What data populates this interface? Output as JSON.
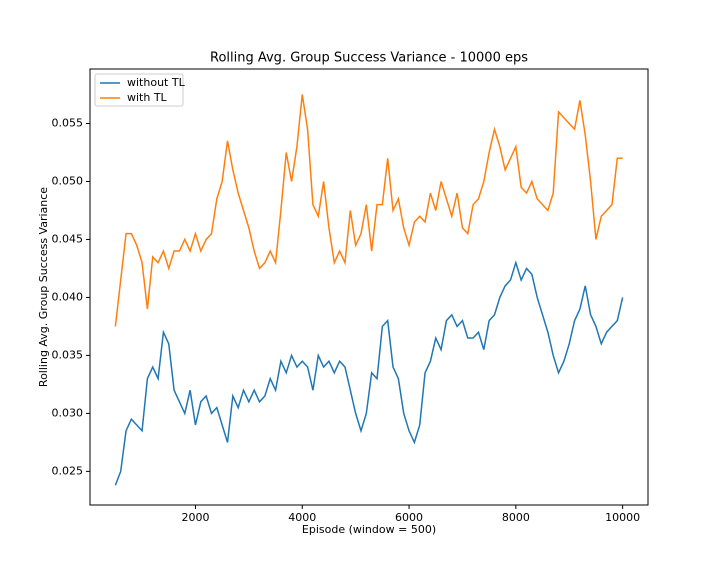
{
  "chart_data": {
    "type": "line",
    "title": "Rolling Avg. Group Success Variance - 10000 eps",
    "x_label": "Episode (window = 500)",
    "y_label": "Rolling Avg. Group Success Variance",
    "xlim": [
      25,
      10475
    ],
    "ylim": [
      0.0221,
      0.0597
    ],
    "xticks": [
      2000,
      4000,
      6000,
      8000,
      10000
    ],
    "yticks": [
      0.025,
      {
        "value": 0.03,
        "label": "0.030"
      },
      0.035,
      {
        "value": 0.04,
        "label": "0.040"
      },
      0.045,
      {
        "value": 0.05,
        "label": "0.050"
      },
      0.055
    ],
    "legend": "upper left",
    "x": [
      500,
      600,
      700,
      800,
      900,
      1000,
      1100,
      1200,
      1300,
      1400,
      1500,
      1600,
      1700,
      1800,
      1900,
      2000,
      2100,
      2200,
      2300,
      2400,
      2500,
      2600,
      2700,
      2800,
      2900,
      3000,
      3100,
      3200,
      3300,
      3400,
      3500,
      3600,
      3700,
      3800,
      3900,
      4000,
      4100,
      4200,
      4300,
      4400,
      4500,
      4600,
      4700,
      4800,
      4900,
      5000,
      5100,
      5200,
      5300,
      5400,
      5500,
      5600,
      5700,
      5800,
      5900,
      6000,
      6100,
      6200,
      6300,
      6400,
      6500,
      6600,
      6700,
      6800,
      6900,
      7000,
      7100,
      7200,
      7300,
      7400,
      7500,
      7600,
      7700,
      7800,
      7900,
      8000,
      8100,
      8200,
      8300,
      8400,
      8500,
      8600,
      8700,
      8800,
      8900,
      9000,
      9100,
      9200,
      9300,
      9400,
      9500,
      9600,
      9700,
      9800,
      9900,
      10000
    ],
    "series": [
      {
        "name": "without TL",
        "color": "#1f77b4",
        "values": [
          0.0238,
          0.025,
          0.0285,
          0.0295,
          0.029,
          0.0285,
          0.033,
          0.034,
          0.033,
          0.037,
          0.036,
          0.032,
          0.031,
          0.03,
          0.032,
          0.029,
          0.031,
          0.0315,
          0.03,
          0.0305,
          0.029,
          0.0275,
          0.0315,
          0.0305,
          0.032,
          0.031,
          0.032,
          0.031,
          0.0315,
          0.033,
          0.032,
          0.0345,
          0.0335,
          0.035,
          0.034,
          0.0345,
          0.034,
          0.032,
          0.035,
          0.034,
          0.0345,
          0.0335,
          0.0345,
          0.034,
          0.032,
          0.03,
          0.0285,
          0.03,
          0.0335,
          0.033,
          0.0375,
          0.038,
          0.034,
          0.033,
          0.03,
          0.0285,
          0.0275,
          0.029,
          0.0335,
          0.0345,
          0.0365,
          0.0355,
          0.038,
          0.0385,
          0.0375,
          0.038,
          0.0365,
          0.0365,
          0.037,
          0.0355,
          0.038,
          0.0385,
          0.04,
          0.041,
          0.0415,
          0.043,
          0.0415,
          0.0425,
          0.042,
          0.04,
          0.0385,
          0.037,
          0.035,
          0.0335,
          0.0345,
          0.036,
          0.038,
          0.039,
          0.041,
          0.0385,
          0.0375,
          0.036,
          0.037,
          0.0375,
          0.038,
          0.04
        ]
      },
      {
        "name": "with TL",
        "color": "#ff7f0e",
        "values": [
          0.0375,
          0.0415,
          0.0455,
          0.0455,
          0.0445,
          0.043,
          0.039,
          0.0435,
          0.043,
          0.044,
          0.0425,
          0.044,
          0.044,
          0.045,
          0.044,
          0.0455,
          0.044,
          0.045,
          0.0455,
          0.0485,
          0.05,
          0.0535,
          0.051,
          0.049,
          0.0475,
          0.046,
          0.044,
          0.0425,
          0.043,
          0.044,
          0.043,
          0.0475,
          0.0525,
          0.05,
          0.053,
          0.0575,
          0.0545,
          0.048,
          0.047,
          0.05,
          0.046,
          0.043,
          0.044,
          0.043,
          0.0475,
          0.0445,
          0.0455,
          0.048,
          0.044,
          0.048,
          0.048,
          0.052,
          0.0475,
          0.0485,
          0.046,
          0.0445,
          0.0465,
          0.047,
          0.0465,
          0.049,
          0.0475,
          0.05,
          0.0485,
          0.047,
          0.049,
          0.046,
          0.0455,
          0.048,
          0.0485,
          0.05,
          0.0525,
          0.0545,
          0.053,
          0.051,
          0.052,
          0.053,
          0.0495,
          0.049,
          0.05,
          0.0485,
          0.048,
          0.0475,
          0.049,
          0.056,
          0.0555,
          0.055,
          0.0545,
          0.057,
          0.054,
          0.05,
          0.045,
          0.047,
          0.0475,
          0.048,
          0.052,
          0.052
        ]
      }
    ]
  }
}
